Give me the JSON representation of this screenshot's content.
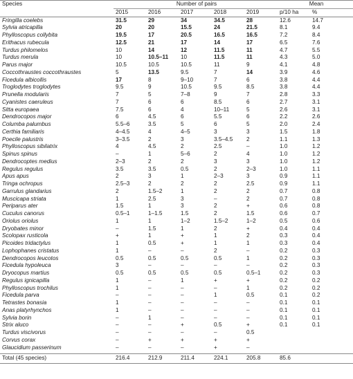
{
  "table": {
    "header": {
      "species": "Species",
      "group_pairs": "Number of pairs",
      "group_mean": "Mean",
      "years": [
        "2015",
        "2016",
        "2017",
        "2018",
        "2019"
      ],
      "mean_cols": [
        "p/10 ha",
        "%"
      ]
    },
    "rows": [
      {
        "species": "Fringilla coelebs",
        "cells": [
          {
            "text": "31.5",
            "bold": true
          },
          {
            "text": "29",
            "bold": true
          },
          {
            "text": "34",
            "bold": true
          },
          {
            "text": "34.5",
            "bold": true
          },
          {
            "text": "28",
            "bold": true
          },
          "12.6",
          "14.7"
        ]
      },
      {
        "species": "Sylvia atricapilla",
        "cells": [
          {
            "text": "20",
            "bold": true
          },
          {
            "text": "20",
            "bold": true
          },
          {
            "text": "15.5",
            "bold": true
          },
          {
            "text": "24",
            "bold": true
          },
          {
            "text": "21.5",
            "bold": true
          },
          "8.1",
          "9.4"
        ]
      },
      {
        "species": "Phylloscopus collybita",
        "cells": [
          {
            "text": "19.5",
            "bold": true
          },
          {
            "text": "17",
            "bold": true
          },
          {
            "text": "20.5",
            "bold": true
          },
          {
            "text": "16.5",
            "bold": true
          },
          {
            "text": "16.5",
            "bold": true
          },
          "7.2",
          "8.4"
        ]
      },
      {
        "species": "Erithacus rubecula",
        "cells": [
          {
            "text": "12.5",
            "bold": true
          },
          {
            "text": "21",
            "bold": true
          },
          {
            "text": "17",
            "bold": true
          },
          {
            "text": "14",
            "bold": true
          },
          {
            "text": "17",
            "bold": true
          },
          "6.5",
          "7.6"
        ]
      },
      {
        "species": "Turdus philomelos",
        "cells": [
          "10",
          {
            "text": "14",
            "bold": true
          },
          {
            "text": "12",
            "bold": true
          },
          {
            "text": "11.5",
            "bold": true
          },
          {
            "text": "11",
            "bold": true
          },
          "4.7",
          "5.5"
        ]
      },
      {
        "species": "Turdus merula",
        "cells": [
          "10",
          {
            "text": "10.5–11",
            "bold": true
          },
          "10",
          {
            "text": "11.5",
            "bold": true
          },
          {
            "text": "11",
            "bold": true
          },
          "4.3",
          "5.0"
        ]
      },
      {
        "species": "Parus major",
        "cells": [
          "10.5",
          "10.5",
          "10.5",
          "11",
          "9",
          "4.1",
          "4.8"
        ]
      },
      {
        "species": "Coccothraustes coccothraustes",
        "cells": [
          "5",
          {
            "text": "13.5",
            "bold": true
          },
          "9.5",
          "7",
          {
            "text": "14",
            "bold": true
          },
          "3.9",
          "4.6"
        ]
      },
      {
        "species": "Ficedula albicollis",
        "cells": [
          {
            "text": "17",
            "bold": true
          },
          "8",
          "9–10",
          "7",
          "6",
          "3.8",
          "4.4"
        ]
      },
      {
        "species": "Troglodytes troglodytes",
        "cells": [
          "9.5",
          "9",
          "10.5",
          "9.5",
          "8.5",
          "3.8",
          "4.4"
        ]
      },
      {
        "species": "Prunella modularis",
        "cells": [
          "7",
          "5",
          "7–8",
          "9",
          "7",
          "2.8",
          "3.3"
        ]
      },
      {
        "species": "Cyanistes caeruleus",
        "cells": [
          "7",
          "6",
          "6",
          "8.5",
          "6",
          "2.7",
          "3.1"
        ]
      },
      {
        "species": "Sitta europaea",
        "cells": [
          "7.5",
          "6",
          "4",
          "10–11",
          "5",
          "2.6",
          "3.1"
        ]
      },
      {
        "species": "Dendrocopos major",
        "cells": [
          "6",
          "4.5",
          "6",
          "5.5",
          "6",
          "2.2",
          "2.6"
        ]
      },
      {
        "species": "Columba palumbus",
        "cells": [
          "5.5–6",
          "3.5",
          "5",
          "6",
          "5",
          "2.0",
          "2.4"
        ]
      },
      {
        "species": "Certhia familiaris",
        "cells": [
          "4–4.5",
          "4",
          "4–5",
          "3",
          "3",
          "1.5",
          "1.8"
        ]
      },
      {
        "species": "Poecile palustris",
        "cells": [
          "3–3.5",
          "2",
          "3",
          "3.5–4.5",
          "2",
          "1.1",
          "1.3"
        ]
      },
      {
        "species": "Phylloscopus sibilatrix",
        "cells": [
          "4",
          "4.5",
          "2",
          "2.5",
          "–",
          "1.0",
          "1.2"
        ]
      },
      {
        "species": "Spinus spinus",
        "cells": [
          "–",
          "1",
          "5–6",
          "2",
          "4",
          "1.0",
          "1.2"
        ]
      },
      {
        "species": "Dendrocoptes medius",
        "cells": [
          "2–3",
          "2",
          "2",
          "3",
          "3",
          "1.0",
          "1.2"
        ]
      },
      {
        "species": "Regulus regulus",
        "cells": [
          "3.5",
          "3.5",
          "0.5",
          "2",
          "2–3",
          "1.0",
          "1.1"
        ]
      },
      {
        "species": "Apus apus",
        "cells": [
          "2",
          "3",
          "1",
          "2–3",
          "3",
          "0.9",
          "1.1"
        ]
      },
      {
        "species": "Tringa ochropus",
        "cells": [
          "2.5–3",
          "2",
          "2",
          "2",
          "2.5",
          "0.9",
          "1.1"
        ]
      },
      {
        "species": "Garrulus glandarius",
        "cells": [
          "2",
          "1.5–2",
          "1",
          "2",
          "2",
          "0.7",
          "0.8"
        ]
      },
      {
        "species": "Muscicapa striata",
        "cells": [
          "1",
          "2.5",
          "3",
          "–",
          "2",
          "0.7",
          "0.8"
        ]
      },
      {
        "species": "Periparus ater",
        "cells": [
          "1.5",
          "1",
          "3",
          "2",
          "+",
          "0.6",
          "0.8"
        ]
      },
      {
        "species": "Cuculus canorus",
        "cells": [
          "0.5–1",
          "1–1.5",
          "1.5",
          "2",
          "1.5",
          "0.6",
          "0.7"
        ]
      },
      {
        "species": "Oriolus oriolus",
        "cells": [
          "1",
          "1",
          "1–2",
          "1.5–2",
          "1–2",
          "0.5",
          "0.6"
        ]
      },
      {
        "species": "Dryobates minor",
        "cells": [
          "–",
          "1.5",
          "1",
          "2",
          "+",
          "0.4",
          "0.4"
        ]
      },
      {
        "species": "Scolopax rusticola",
        "cells": [
          "+",
          "1",
          "+",
          "1",
          "2",
          "0.3",
          "0.4"
        ]
      },
      {
        "species": "Picoides tridactylus",
        "cells": [
          "1",
          "0.5",
          "+",
          "1",
          "1",
          "0.3",
          "0.4"
        ]
      },
      {
        "species": "Lophophanes cristatus",
        "cells": [
          "1",
          "–",
          "–",
          "2",
          "–",
          "0.2",
          "0.3"
        ]
      },
      {
        "species": "Dendrocopos leucotos",
        "cells": [
          "0.5",
          "0.5",
          "0.5",
          "0.5",
          "1",
          "0.2",
          "0.3"
        ]
      },
      {
        "species": "Ficedula hypoleuca",
        "cells": [
          "3",
          "–",
          "–",
          "–",
          "–",
          "0.2",
          "0.3"
        ]
      },
      {
        "species": "Dryocopus martius",
        "cells": [
          "0.5",
          "0.5",
          "0.5",
          "0.5",
          "0.5–1",
          "0.2",
          "0.3"
        ]
      },
      {
        "species": "Regulus ignicapilla",
        "cells": [
          "1",
          "–",
          "1",
          "+",
          "+",
          "0.2",
          "0.2"
        ]
      },
      {
        "species": "Phylloscopus trochilus",
        "cells": [
          "1",
          "–",
          "–",
          "–",
          "1",
          "0.2",
          "0.2"
        ]
      },
      {
        "species": "Ficedula parva",
        "cells": [
          "–",
          "–",
          "–",
          "1",
          "0.5",
          "0.1",
          "0.2"
        ]
      },
      {
        "species": "Tetrastes bonasia",
        "cells": [
          "1",
          "–",
          "–",
          "–",
          "–",
          "0.1",
          "0.1"
        ]
      },
      {
        "species": "Anas platyrhynchos",
        "cells": [
          "1",
          "–",
          "–",
          "–",
          "–",
          "0.1",
          "0.1"
        ]
      },
      {
        "species": "Sylvia borin",
        "cells": [
          "–",
          "1",
          "–",
          "–",
          "–",
          "0.1",
          "0.1"
        ]
      },
      {
        "species": "Strix aluco",
        "cells": [
          "–",
          "–",
          "+",
          "0.5",
          "+",
          "0.1",
          "0.1"
        ]
      },
      {
        "species": "Turdus viscivorus",
        "cells": [
          "–",
          "–",
          "–",
          "–",
          "0.5"
        ]
      },
      {
        "species": "Corvus corax",
        "cells": [
          "–",
          "+",
          "+",
          "+",
          "+"
        ]
      },
      {
        "species": "Glaucidium passerinum",
        "cells": [
          "–",
          "–",
          "–",
          "+",
          "–"
        ]
      }
    ],
    "total": {
      "species": "Total (45 species)",
      "cells": [
        "216.4",
        "212.9",
        "211.4",
        "224.1",
        "205.8",
        "85.6"
      ]
    }
  }
}
